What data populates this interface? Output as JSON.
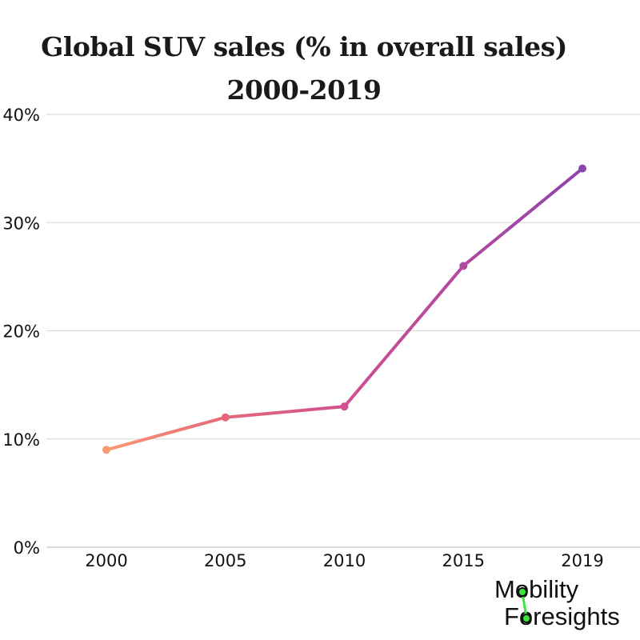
{
  "chart_data": {
    "type": "line",
    "title": [
      "Global SUV sales (% in overall sales)",
      "2000-2019"
    ],
    "categories": [
      "2000",
      "2005",
      "2010",
      "2015",
      "2019"
    ],
    "values": [
      9,
      12,
      13,
      26,
      35
    ],
    "y_ticks": [
      "0%",
      "10%",
      "20%",
      "30%",
      "40%"
    ],
    "ylim": [
      0,
      40
    ],
    "grid": true,
    "line_colors": [
      "#f99a72",
      "#e5687a",
      "#d05090",
      "#b04aa0",
      "#8e44ad"
    ]
  },
  "logo": {
    "line1": "Mobility",
    "line2": "Foresights",
    "accent": "#39e639"
  }
}
